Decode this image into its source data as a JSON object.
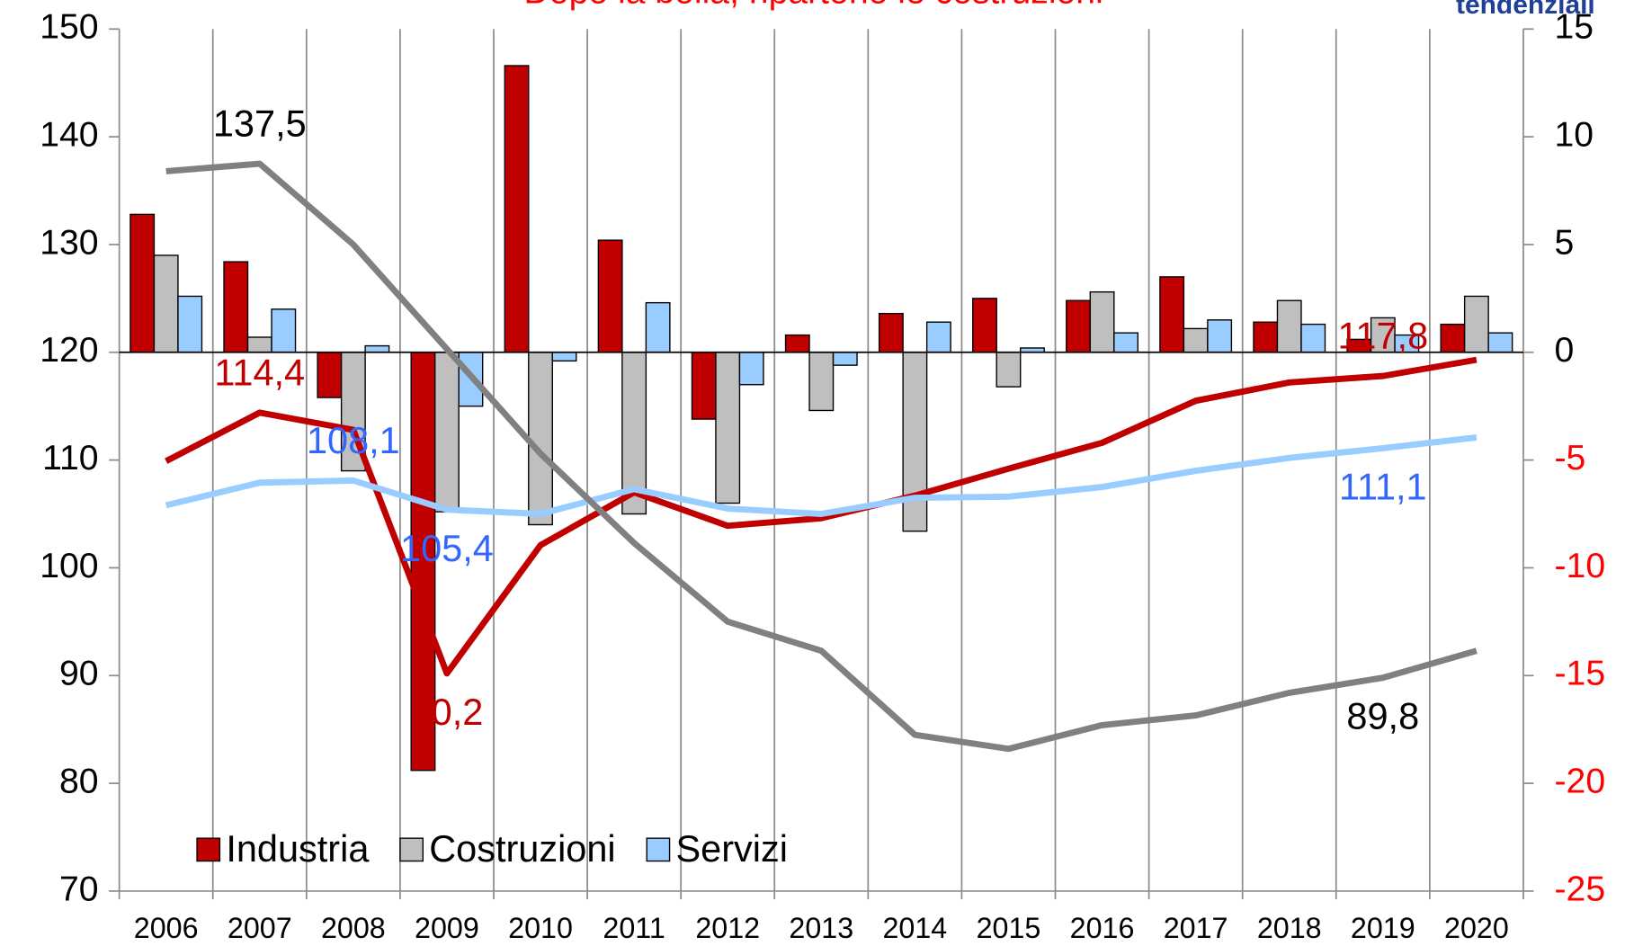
{
  "chart_data": {
    "type": "combo",
    "title": "Dopo la bolla, ripartono le costruzioni",
    "y2_label": "tendenziali",
    "categories": [
      "2006",
      "2007",
      "2008",
      "2009",
      "2010",
      "2011",
      "2012",
      "2013",
      "2014",
      "2015",
      "2016",
      "2017",
      "2018",
      "2019",
      "2020"
    ],
    "ylim": [
      70,
      150
    ],
    "yticks": [
      70,
      80,
      90,
      100,
      110,
      120,
      130,
      140,
      150
    ],
    "y2lim": [
      -25,
      15
    ],
    "y2ticks": [
      -25,
      -20,
      -15,
      -10,
      -5,
      0,
      5,
      10,
      15
    ],
    "y2_negative_tick_color": "#ff0000",
    "legend": "lower left",
    "series": [
      {
        "name": "Industria",
        "type": "bar",
        "axis": "y2",
        "color": "#c00000",
        "values": [
          6.4,
          4.2,
          -2.1,
          -19.4,
          13.3,
          5.2,
          -3.1,
          0.8,
          1.8,
          2.5,
          2.4,
          3.5,
          1.4,
          0.6,
          1.3
        ]
      },
      {
        "name": "Costruzioni",
        "type": "bar",
        "axis": "y2",
        "color": "#bfbfbf",
        "values": [
          4.5,
          0.7,
          -5.5,
          -7.4,
          -8.0,
          -7.5,
          -7.0,
          -2.7,
          -8.3,
          -1.6,
          2.8,
          1.1,
          2.4,
          1.6,
          2.6
        ]
      },
      {
        "name": "Servizi",
        "type": "bar",
        "axis": "y2",
        "color": "#99ccff",
        "values": [
          2.6,
          2.0,
          0.3,
          -2.5,
          -0.4,
          2.3,
          -1.5,
          -0.6,
          1.4,
          0.2,
          0.9,
          1.5,
          1.3,
          0.8,
          0.9
        ]
      },
      {
        "type": "line",
        "color": "#c00000",
        "values": [
          109.9,
          114.4,
          112.8,
          90.2,
          102.1,
          107.0,
          103.9,
          104.6,
          106.7,
          109.2,
          111.6,
          115.5,
          117.2,
          117.8,
          119.3
        ],
        "value_labels": [
          null,
          "114,4",
          null,
          "90,2",
          null,
          null,
          null,
          null,
          null,
          null,
          null,
          null,
          null,
          "117,8",
          null
        ]
      },
      {
        "type": "line",
        "color": "#99ccff",
        "values": [
          105.8,
          107.9,
          108.1,
          105.4,
          105.0,
          107.3,
          105.5,
          105.0,
          106.5,
          106.6,
          107.5,
          109.0,
          110.2,
          111.1,
          112.1
        ],
        "value_labels": [
          null,
          null,
          "108,1",
          "105,4",
          null,
          null,
          null,
          null,
          null,
          null,
          null,
          null,
          null,
          "111,1",
          null
        ],
        "label_color": "#3366ff"
      },
      {
        "type": "line",
        "color": "#808080",
        "values": [
          136.8,
          137.5,
          130.0,
          120.3,
          110.6,
          102.3,
          95.0,
          92.3,
          84.5,
          83.2,
          85.4,
          86.3,
          88.4,
          89.8,
          92.3
        ],
        "value_labels": [
          null,
          "137,5",
          null,
          null,
          null,
          null,
          null,
          null,
          null,
          null,
          null,
          null,
          null,
          "89,8",
          null
        ],
        "label_color": "#000000"
      }
    ]
  }
}
